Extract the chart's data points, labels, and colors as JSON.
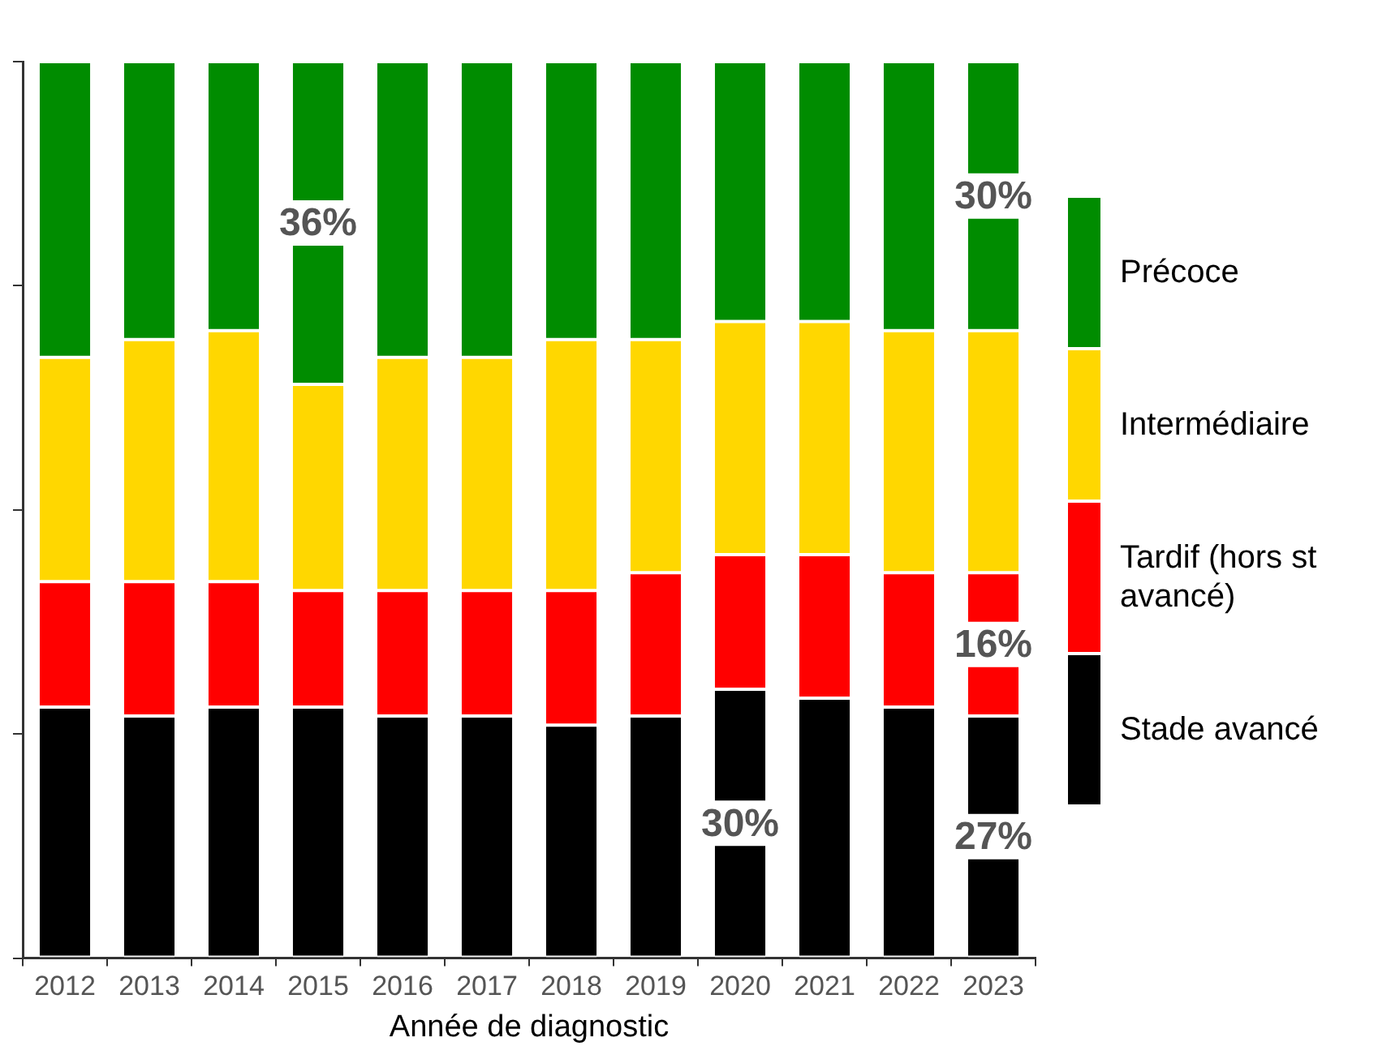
{
  "chart_data": {
    "type": "bar",
    "stacked": true,
    "xlabel": "Année de diagnostic",
    "categories": [
      "2012",
      "2013",
      "2014",
      "2015",
      "2016",
      "2017",
      "2018",
      "2019",
      "2020",
      "2021",
      "2022",
      "2023"
    ],
    "ylim": [
      0,
      100
    ],
    "yticks": [
      {
        "value": 0,
        "label": null
      },
      {
        "value": 25,
        "label": null
      },
      {
        "value": 50,
        "label": null
      },
      {
        "value": 75,
        "label": null
      },
      {
        "value": 100,
        "label": null
      }
    ],
    "tick_labels": "x",
    "legend": "right",
    "series": [
      {
        "name": "Stade avancé",
        "color": "#000000",
        "values": [
          28,
          27,
          28,
          28,
          27,
          27,
          26,
          27,
          30,
          29,
          28,
          27
        ],
        "value_labels": [
          null,
          null,
          null,
          null,
          null,
          null,
          null,
          null,
          "30%",
          null,
          null,
          "27%"
        ]
      },
      {
        "name": "Tardif (hors st avancé)",
        "color": "#ff0000",
        "values": [
          14,
          15,
          14,
          13,
          14,
          14,
          15,
          16,
          15,
          16,
          15,
          16
        ],
        "value_labels": [
          null,
          null,
          null,
          null,
          null,
          null,
          null,
          null,
          null,
          null,
          null,
          "16%"
        ]
      },
      {
        "name": "Intermédiaire",
        "color": "#ffd700",
        "values": [
          25,
          27,
          28,
          23,
          26,
          26,
          28,
          26,
          26,
          26,
          27,
          27
        ],
        "value_labels": [
          null,
          null,
          null,
          null,
          null,
          null,
          null,
          null,
          null,
          null,
          null,
          null
        ]
      },
      {
        "name": "Précoce",
        "color": "#008c00",
        "values": [
          33,
          31,
          30,
          36,
          33,
          33,
          31,
          31,
          29,
          29,
          30,
          30
        ],
        "value_labels": [
          null,
          null,
          null,
          "36%",
          null,
          null,
          null,
          null,
          null,
          null,
          null,
          "30%"
        ]
      }
    ]
  }
}
